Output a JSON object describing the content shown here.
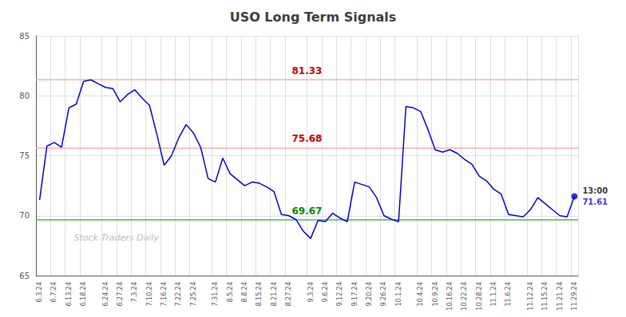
{
  "chart_data": {
    "type": "line",
    "title": "USO Long Term Signals",
    "categories": [
      "6.3.24",
      null,
      "6.7.24",
      null,
      "6.13.24",
      null,
      "6.18.24",
      null,
      null,
      "6.24.24",
      null,
      "6.27.24",
      null,
      "7.3.24",
      null,
      "7.10.24",
      null,
      "7.16.24",
      null,
      "7.22.24",
      null,
      "7.25.24",
      null,
      null,
      "7.31.24",
      null,
      "8.5.24",
      null,
      "8.8.24",
      null,
      "8.15.24",
      null,
      "8.21.24",
      null,
      "8.27.24",
      null,
      null,
      "9.3.24",
      null,
      "9.6.24",
      null,
      "9.12.24",
      null,
      "9.17.24",
      null,
      "9.20.24",
      null,
      "9.26.24",
      null,
      "10.1.24",
      null,
      null,
      "10.4.24",
      null,
      "10.9.24",
      null,
      "10.16.24",
      null,
      "10.22.24",
      null,
      "10.28.24",
      null,
      "11.1.24",
      null,
      "11.6.24",
      null,
      null,
      "11.12.24",
      null,
      "11.15.24",
      null,
      "11.21.24",
      null,
      "11.29.24"
    ],
    "values": [
      71.3,
      75.8,
      76.1,
      75.7,
      79.0,
      79.3,
      81.2,
      81.33,
      81.0,
      80.7,
      80.6,
      79.5,
      80.1,
      80.5,
      79.8,
      79.2,
      76.8,
      74.2,
      75.0,
      76.5,
      77.6,
      76.9,
      75.68,
      73.1,
      72.8,
      74.8,
      73.5,
      73.0,
      72.5,
      72.8,
      72.7,
      72.4,
      72.0,
      70.1,
      70.0,
      69.67,
      68.7,
      68.1,
      69.6,
      69.5,
      70.2,
      69.8,
      69.5,
      72.8,
      72.6,
      72.4,
      71.5,
      70.0,
      69.7,
      69.5,
      79.1,
      79.0,
      78.7,
      77.2,
      75.5,
      75.3,
      75.5,
      75.2,
      74.7,
      74.3,
      73.3,
      72.9,
      72.2,
      71.8,
      70.1,
      70.0,
      69.9,
      70.5,
      71.5,
      71.0,
      70.5,
      70.0,
      69.9,
      71.61
    ],
    "color": "#0000cc",
    "ylim": [
      65,
      85
    ],
    "yticks": [
      65,
      70,
      75,
      80,
      85
    ],
    "grid": true,
    "hlines": [
      {
        "y": 81.33,
        "color": "#ffaaaa",
        "label": "81.33",
        "label_color": "#cc0000"
      },
      {
        "y": 75.68,
        "color": "#ffaaaa",
        "label": "75.68",
        "label_color": "#cc0000"
      },
      {
        "y": 69.67,
        "color": "#44bb44",
        "label": "69.67",
        "label_color": "#008800"
      }
    ],
    "last_point": {
      "label": "13:00",
      "value_label": "71.61",
      "color": "#0000cc"
    },
    "watermark": "Stock Traders Daily"
  }
}
